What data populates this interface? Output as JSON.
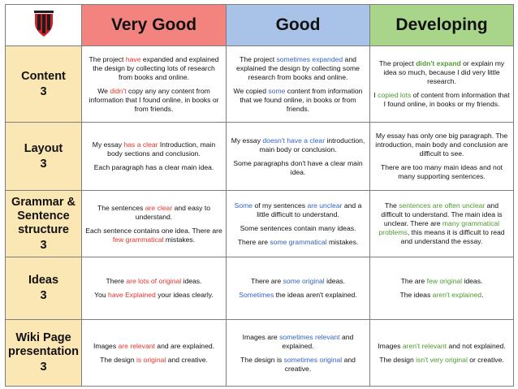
{
  "logo_icon": "school-crest-icon",
  "colors": {
    "very_good": "#f2837f",
    "good": "#a9c3e8",
    "developing": "#a8d58a",
    "criteria": "#fbe7b4",
    "red_text": "#e8342a",
    "blue_text": "#3463c2",
    "green_text": "#4e9a2e"
  },
  "headers": {
    "very_good": "Very Good",
    "good": "Good",
    "developing": "Developing"
  },
  "rows": [
    {
      "name": "Content",
      "score": "3",
      "very_good": [
        [
          "The project ",
          {
            "t": "have",
            "c": "red"
          },
          " expanded and explained the design by collecting lots of research from books and online."
        ],
        [
          "We ",
          {
            "t": "didn't",
            "c": "red"
          },
          " copy any any content from information that I found online, in books or from friends."
        ]
      ],
      "good": [
        [
          "The project ",
          {
            "t": "sometimes expanded",
            "c": "blue"
          },
          " and explained the design by collecting some research from books and online."
        ],
        [
          "We copied ",
          {
            "t": "some",
            "c": "blue"
          },
          " content from information that we found online, in books or from friends."
        ]
      ],
      "developing": [
        [
          "The project ",
          {
            "t": "didn't expand",
            "c": "green",
            "b": true
          },
          " or explain my idea so much, because I did very little research."
        ],
        [
          "I ",
          {
            "t": "copied lots",
            "c": "green"
          },
          " of content from information that I found online, in books or my friends."
        ]
      ]
    },
    {
      "name": "Layout",
      "score": "3",
      "very_good": [
        [
          "My essay ",
          {
            "t": "has a clear",
            "c": "red"
          },
          " Introduction, main body sections and conclusion."
        ],
        [
          "Each paragraph has a clear main idea."
        ]
      ],
      "good": [
        [
          "My essay ",
          {
            "t": "doesn't have a clear",
            "c": "blue"
          },
          " introduction, main body or conclusion."
        ],
        [
          "Some paragraphs don't have a clear main idea."
        ]
      ],
      "developing": [
        [
          "My essay has only one big paragraph. The introduction, main body and conclusion are difficult to see."
        ],
        [
          "There are too many main ideas and not many supporting sentences."
        ]
      ]
    },
    {
      "name": "Grammar & Sentence structure",
      "score": "3",
      "very_good": [
        [
          "The sentences ",
          {
            "t": "are clear",
            "c": "red"
          },
          " and easy to understand."
        ],
        [
          "Each sentence contains one idea. There are ",
          {
            "t": "few grammatical",
            "c": "red"
          },
          " mistakes."
        ]
      ],
      "good": [
        [
          {
            "t": "Some",
            "c": "blue"
          },
          " of my sentences ",
          {
            "t": "are unclear",
            "c": "blue"
          },
          " and a little difficult to understand."
        ],
        [
          "Some sentences contain many ideas."
        ],
        [
          "There are ",
          {
            "t": "some grammatical",
            "c": "blue"
          },
          " mistakes."
        ]
      ],
      "developing": [
        [
          "The ",
          {
            "t": "sentences are often unclear",
            "c": "green"
          },
          " and difficult to understand. The main idea is unclear. There are ",
          {
            "t": "many grammatical problems",
            "c": "green"
          },
          ", this means it is difficult to read and understand the essay."
        ]
      ]
    },
    {
      "name": "Ideas",
      "score": "3",
      "very_good": [
        [
          "There ",
          {
            "t": "are lots of original",
            "c": "red"
          },
          " ideas."
        ],
        [
          "You ",
          {
            "t": "have Explained",
            "c": "red"
          },
          " your ideas clearly."
        ]
      ],
      "good": [
        [
          "There are ",
          {
            "t": "some original",
            "c": "blue"
          },
          " ideas."
        ],
        [
          {
            "t": "Sometimes",
            "c": "blue"
          },
          " the ideas aren't explained."
        ]
      ],
      "developing": [
        [
          "The are ",
          {
            "t": "few original",
            "c": "green"
          },
          " ideas."
        ],
        [
          "The ideas ",
          {
            "t": "aren't explained",
            "c": "green"
          },
          "."
        ]
      ]
    },
    {
      "name": "Wiki Page presentation",
      "score": "3",
      "very_good": [
        [
          "Images ",
          {
            "t": "are relevant",
            "c": "red"
          },
          " and are explained."
        ],
        [
          "The design ",
          {
            "t": "is original",
            "c": "red"
          },
          " and creative."
        ]
      ],
      "good": [
        [
          "Images are ",
          {
            "t": "sometimes relevant",
            "c": "blue"
          },
          " and explained."
        ],
        [
          "The design is ",
          {
            "t": "sometimes original",
            "c": "blue"
          },
          " and creative."
        ]
      ],
      "developing": [
        [
          "Images ",
          {
            "t": "aren't relevant",
            "c": "green"
          },
          " and not explained."
        ],
        [
          "The design ",
          {
            "t": "isn't very original",
            "c": "green"
          },
          " or creative."
        ]
      ]
    }
  ]
}
